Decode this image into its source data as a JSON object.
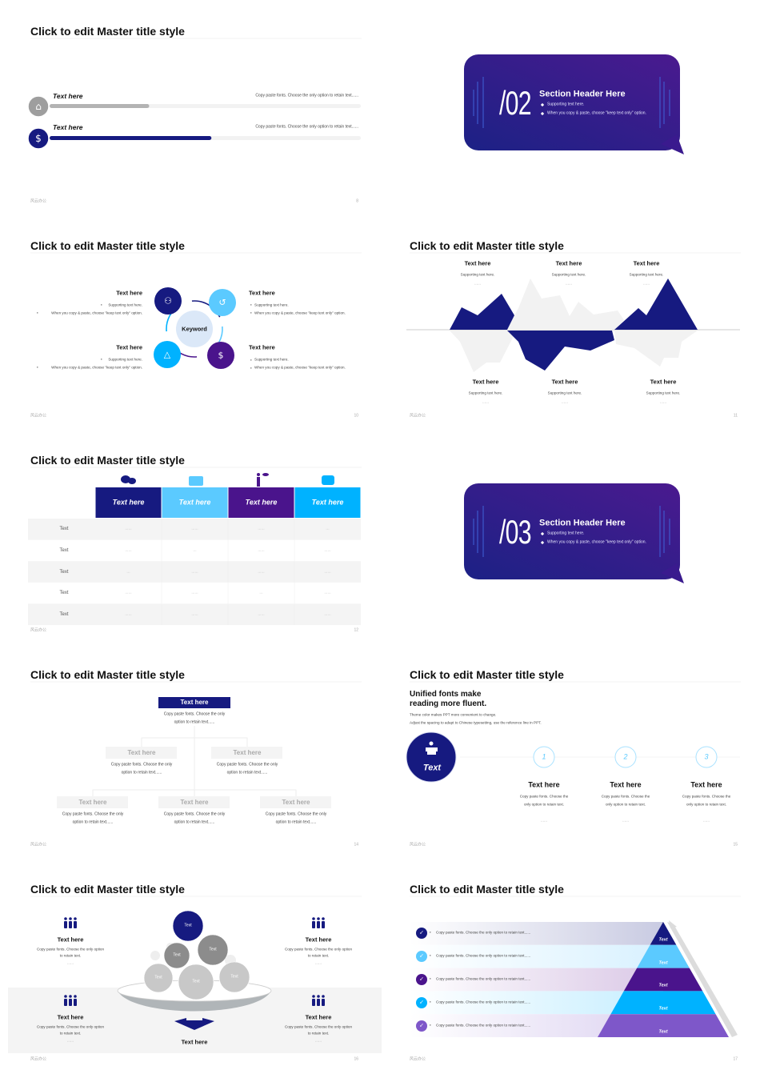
{
  "footer_brand": "风云办公",
  "colors": {
    "navy": "#161a80",
    "light_blue": "#5bcaff",
    "purple": "#4a148c",
    "cyan": "#00b2ff",
    "violet": "#7e57c9",
    "grey": "#b3b3b3",
    "section_gradient_start": "#1c2185",
    "section_gradient_end": "#4a1a8f"
  },
  "s1": {
    "title": "Click to edit Master title style",
    "items": [
      {
        "label": "Text here",
        "desc": "Copy paste fonts. Choose the only option to retain text......",
        "progress": 0.32,
        "icon": "home-icon"
      },
      {
        "label": "Text here",
        "desc": "Copy paste fonts. Choose the only option to retain text......",
        "progress": 0.52,
        "icon": "money-icon"
      }
    ],
    "page": "8"
  },
  "s2": {
    "number": "/02",
    "heading": "Section Header Here",
    "bullets": [
      "Supporting text here.",
      "When you copy & paste, choose \"keep text only\" option."
    ]
  },
  "s3": {
    "title": "Click to edit Master title style",
    "keyword": "Keyword",
    "items": [
      {
        "heading": "Text here",
        "bullets": [
          "Supporting text here.",
          "When you copy & paste, choose \"keep text only\" option."
        ],
        "icon": "line-chart-icon"
      },
      {
        "heading": "Text here",
        "bullets": [
          "Supporting text here.",
          "When you copy & paste, choose \"keep text only\" option."
        ],
        "icon": "history-icon"
      },
      {
        "heading": "Text here",
        "bullets": [
          "Supporting text here.",
          "When you copy & paste, choose \"keep text only\" option."
        ],
        "icon": "triangle-network-icon"
      },
      {
        "heading": "Text here",
        "bullets": [
          "Supporting text here.",
          "When you copy & paste, choose \"keep text only\" option."
        ],
        "icon": "person-money-icon"
      }
    ],
    "page": "10"
  },
  "s4": {
    "title": "Click to edit Master title style",
    "top": [
      {
        "heading": "Text here",
        "sub": "Supporting text here.",
        "dots": "......"
      },
      {
        "heading": "Text here",
        "sub": "Supporting text here.",
        "dots": "......"
      },
      {
        "heading": "Text here",
        "sub": "Supporting text here.",
        "dots": "......"
      }
    ],
    "bottom": [
      {
        "heading": "Text here",
        "sub": "Supporting text here.",
        "dots": "......"
      },
      {
        "heading": "Text here",
        "sub": "Supporting text here.",
        "dots": "......"
      },
      {
        "heading": "Text here",
        "sub": "Supporting text here.",
        "dots": "......"
      }
    ],
    "page": "11"
  },
  "s5": {
    "title": "Click to edit Master title style",
    "columns": [
      "Text here",
      "Text here",
      "Text here",
      "Text here"
    ],
    "column_icons": [
      "speech-bubbles-icon",
      "briefcase-icon",
      "speaker-person-icon",
      "trophy-icon"
    ],
    "rows": [
      {
        "label": "Text",
        "cells": [
          "......",
          "......",
          "......",
          "..."
        ]
      },
      {
        "label": "Text",
        "cells": [
          "......",
          "...",
          "......",
          "......"
        ]
      },
      {
        "label": "Text",
        "cells": [
          "...",
          "......",
          "......",
          "......"
        ]
      },
      {
        "label": "Text",
        "cells": [
          "......",
          "......",
          "...",
          "......"
        ]
      },
      {
        "label": "Text",
        "cells": [
          "......",
          "......",
          "......",
          "......"
        ]
      }
    ],
    "page": "12"
  },
  "s6": {
    "number": "/03",
    "heading": "Section Header Here",
    "bullets": [
      "Supporting text here.",
      "When you copy & paste, choose \"keep text only\" option."
    ]
  },
  "s7": {
    "title": "Click to edit Master title style",
    "root": {
      "label": "Text here",
      "desc": [
        "Copy paste fonts. Choose the only",
        "option to retain text......"
      ]
    },
    "level2": [
      {
        "label": "Text here",
        "desc": [
          "Copy paste fonts. Choose the only",
          "option to retain text......"
        ]
      },
      {
        "label": "Text here",
        "desc": [
          "Copy paste fonts. Choose the only",
          "option to retain text......"
        ]
      }
    ],
    "level3": [
      {
        "label": "Text here",
        "desc": [
          "Copy paste fonts. Choose the only",
          "option to retain text......"
        ]
      },
      {
        "label": "Text here",
        "desc": [
          "Copy paste fonts. Choose the only",
          "option to retain text......"
        ]
      },
      {
        "label": "Text here",
        "desc": [
          "Copy paste fonts. Choose the only",
          "option to retain text......"
        ]
      }
    ],
    "page": "14"
  },
  "s8": {
    "title": "Click to edit Master title style",
    "heading": [
      "Unified fonts make",
      "reading more fluent."
    ],
    "body": [
      "Theme color makes PPT more convenient to change.",
      "Adjust the spacing to adapt to Chinese typesetting, use the reference line in PPT."
    ],
    "badge": "Text",
    "steps": [
      {
        "number": "1",
        "heading": "Text here",
        "desc": [
          "Copy paste fonts. Choose the",
          "only option to retain text."
        ],
        "dots": "......"
      },
      {
        "number": "2",
        "heading": "Text here",
        "desc": [
          "Copy paste fonts. Choose the",
          "only option to retain text."
        ],
        "dots": "......"
      },
      {
        "number": "3",
        "heading": "Text here",
        "desc": [
          "Copy paste fonts. Choose the",
          "only option to retain text."
        ],
        "dots": "......"
      }
    ],
    "page": "15"
  },
  "s9": {
    "title": "Click to edit Master title style",
    "cards": [
      {
        "heading": "Text here",
        "desc": [
          "Copy paste fonts. Choose the only option",
          "to retain text."
        ],
        "dots": "......"
      },
      {
        "heading": "Text here",
        "desc": [
          "Copy paste fonts. Choose the only option",
          "to retain text."
        ],
        "dots": "......"
      },
      {
        "heading": "Text here",
        "desc": [
          "Copy paste fonts. Choose the only option",
          "to retain text."
        ],
        "dots": "......"
      },
      {
        "heading": "Text here",
        "desc": [
          "Copy paste fonts. Choose the only option",
          "to retain text."
        ],
        "dots": "......"
      }
    ],
    "balls": [
      "Text",
      "Text",
      "Text",
      "Text",
      "Text",
      "Text"
    ],
    "bottom_label": "Text here",
    "page": "16"
  },
  "s10": {
    "title": "Click to edit Master title style",
    "items": [
      {
        "text": "Copy paste fonts. Choose the only option to retain text......",
        "level": "Text"
      },
      {
        "text": "Copy paste fonts. Choose the only option to retain text......",
        "level": "Text"
      },
      {
        "text": "Copy paste fonts. Choose the only option to retain text......",
        "level": "Text"
      },
      {
        "text": "Copy paste fonts. Choose the only option to retain text......",
        "level": "Text"
      },
      {
        "text": "Copy paste fonts. Choose the only option to retain text......",
        "level": "Text"
      }
    ],
    "page": "17"
  }
}
